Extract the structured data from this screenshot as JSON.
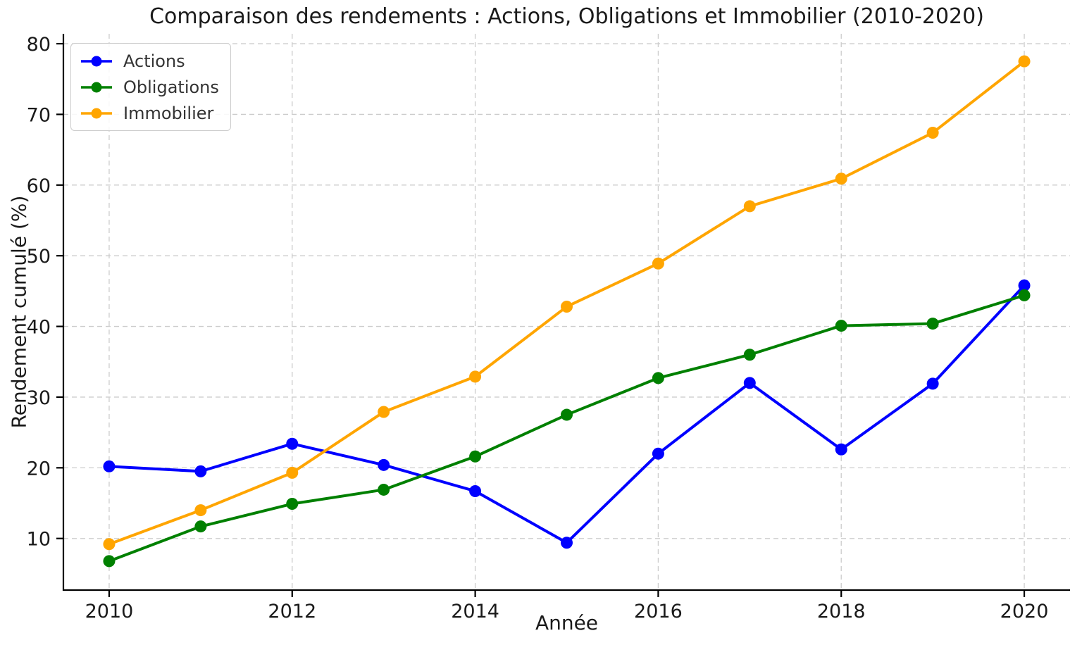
{
  "chart_data": {
    "type": "line",
    "title": "Comparaison des rendements : Actions, Obligations et Immobilier (2010-2020)",
    "xlabel": "Année",
    "ylabel": "Rendement cumulé (%)",
    "x": [
      2010,
      2011,
      2012,
      2013,
      2014,
      2015,
      2016,
      2017,
      2018,
      2019,
      2020
    ],
    "series": [
      {
        "name": "Actions",
        "color": "#0000ff",
        "values": [
          20.2,
          19.5,
          23.4,
          20.4,
          16.7,
          9.4,
          22.0,
          32.0,
          22.6,
          31.9,
          45.8
        ]
      },
      {
        "name": "Obligations",
        "color": "#008000",
        "values": [
          6.8,
          11.7,
          14.9,
          16.9,
          21.6,
          27.5,
          32.7,
          36.0,
          40.1,
          40.4,
          44.4
        ]
      },
      {
        "name": "Immobilier",
        "color": "#ffa500",
        "values": [
          9.2,
          14.0,
          19.3,
          27.9,
          32.9,
          42.8,
          48.9,
          57.0,
          60.9,
          67.4,
          77.5
        ]
      }
    ],
    "xticks": [
      "2010",
      "2012",
      "2014",
      "2016",
      "2018",
      "2020"
    ],
    "xtick_values": [
      2010,
      2012,
      2014,
      2016,
      2018,
      2020
    ],
    "yticks": [
      "10",
      "20",
      "30",
      "40",
      "50",
      "60",
      "70",
      "80"
    ],
    "ytick_values": [
      10,
      20,
      30,
      40,
      50,
      60,
      70,
      80
    ],
    "xlim": [
      2009.5,
      2020.5
    ],
    "ylim": [
      2.7,
      81.4
    ],
    "grid": true,
    "grid_color": "#cccccc",
    "spine_color": "#000000",
    "text_color": "#1a1a1a",
    "legend_position": "upper left",
    "marker": "circle"
  }
}
